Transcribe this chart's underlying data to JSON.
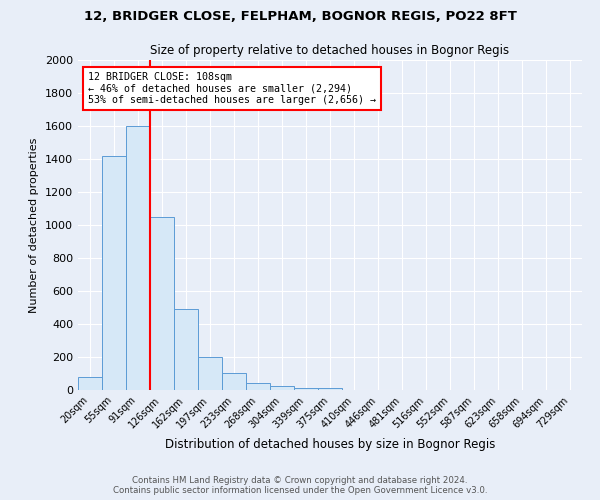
{
  "title_line1": "12, BRIDGER CLOSE, FELPHAM, BOGNOR REGIS, PO22 8FT",
  "title_line2": "Size of property relative to detached houses in Bognor Regis",
  "xlabel": "Distribution of detached houses by size in Bognor Regis",
  "ylabel": "Number of detached properties",
  "categories": [
    "20sqm",
    "55sqm",
    "91sqm",
    "126sqm",
    "162sqm",
    "197sqm",
    "233sqm",
    "268sqm",
    "304sqm",
    "339sqm",
    "375sqm",
    "410sqm",
    "446sqm",
    "481sqm",
    "516sqm",
    "552sqm",
    "587sqm",
    "623sqm",
    "658sqm",
    "694sqm",
    "729sqm"
  ],
  "values": [
    80,
    1420,
    1600,
    1050,
    490,
    200,
    105,
    45,
    25,
    15,
    10,
    0,
    0,
    0,
    0,
    0,
    0,
    0,
    0,
    0,
    0
  ],
  "bar_color": "#d6e8f7",
  "bar_edge_color": "#5b9bd5",
  "annotation_title": "12 BRIDGER CLOSE: 108sqm",
  "annotation_line1": "← 46% of detached houses are smaller (2,294)",
  "annotation_line2": "53% of semi-detached houses are larger (2,656) →",
  "ylim": [
    0,
    2000
  ],
  "yticks": [
    0,
    200,
    400,
    600,
    800,
    1000,
    1200,
    1400,
    1600,
    1800,
    2000
  ],
  "footer_line1": "Contains HM Land Registry data © Crown copyright and database right 2024.",
  "footer_line2": "Contains public sector information licensed under the Open Government Licence v3.0.",
  "background_color": "#e8eef8",
  "plot_background_color": "#e8eef8"
}
